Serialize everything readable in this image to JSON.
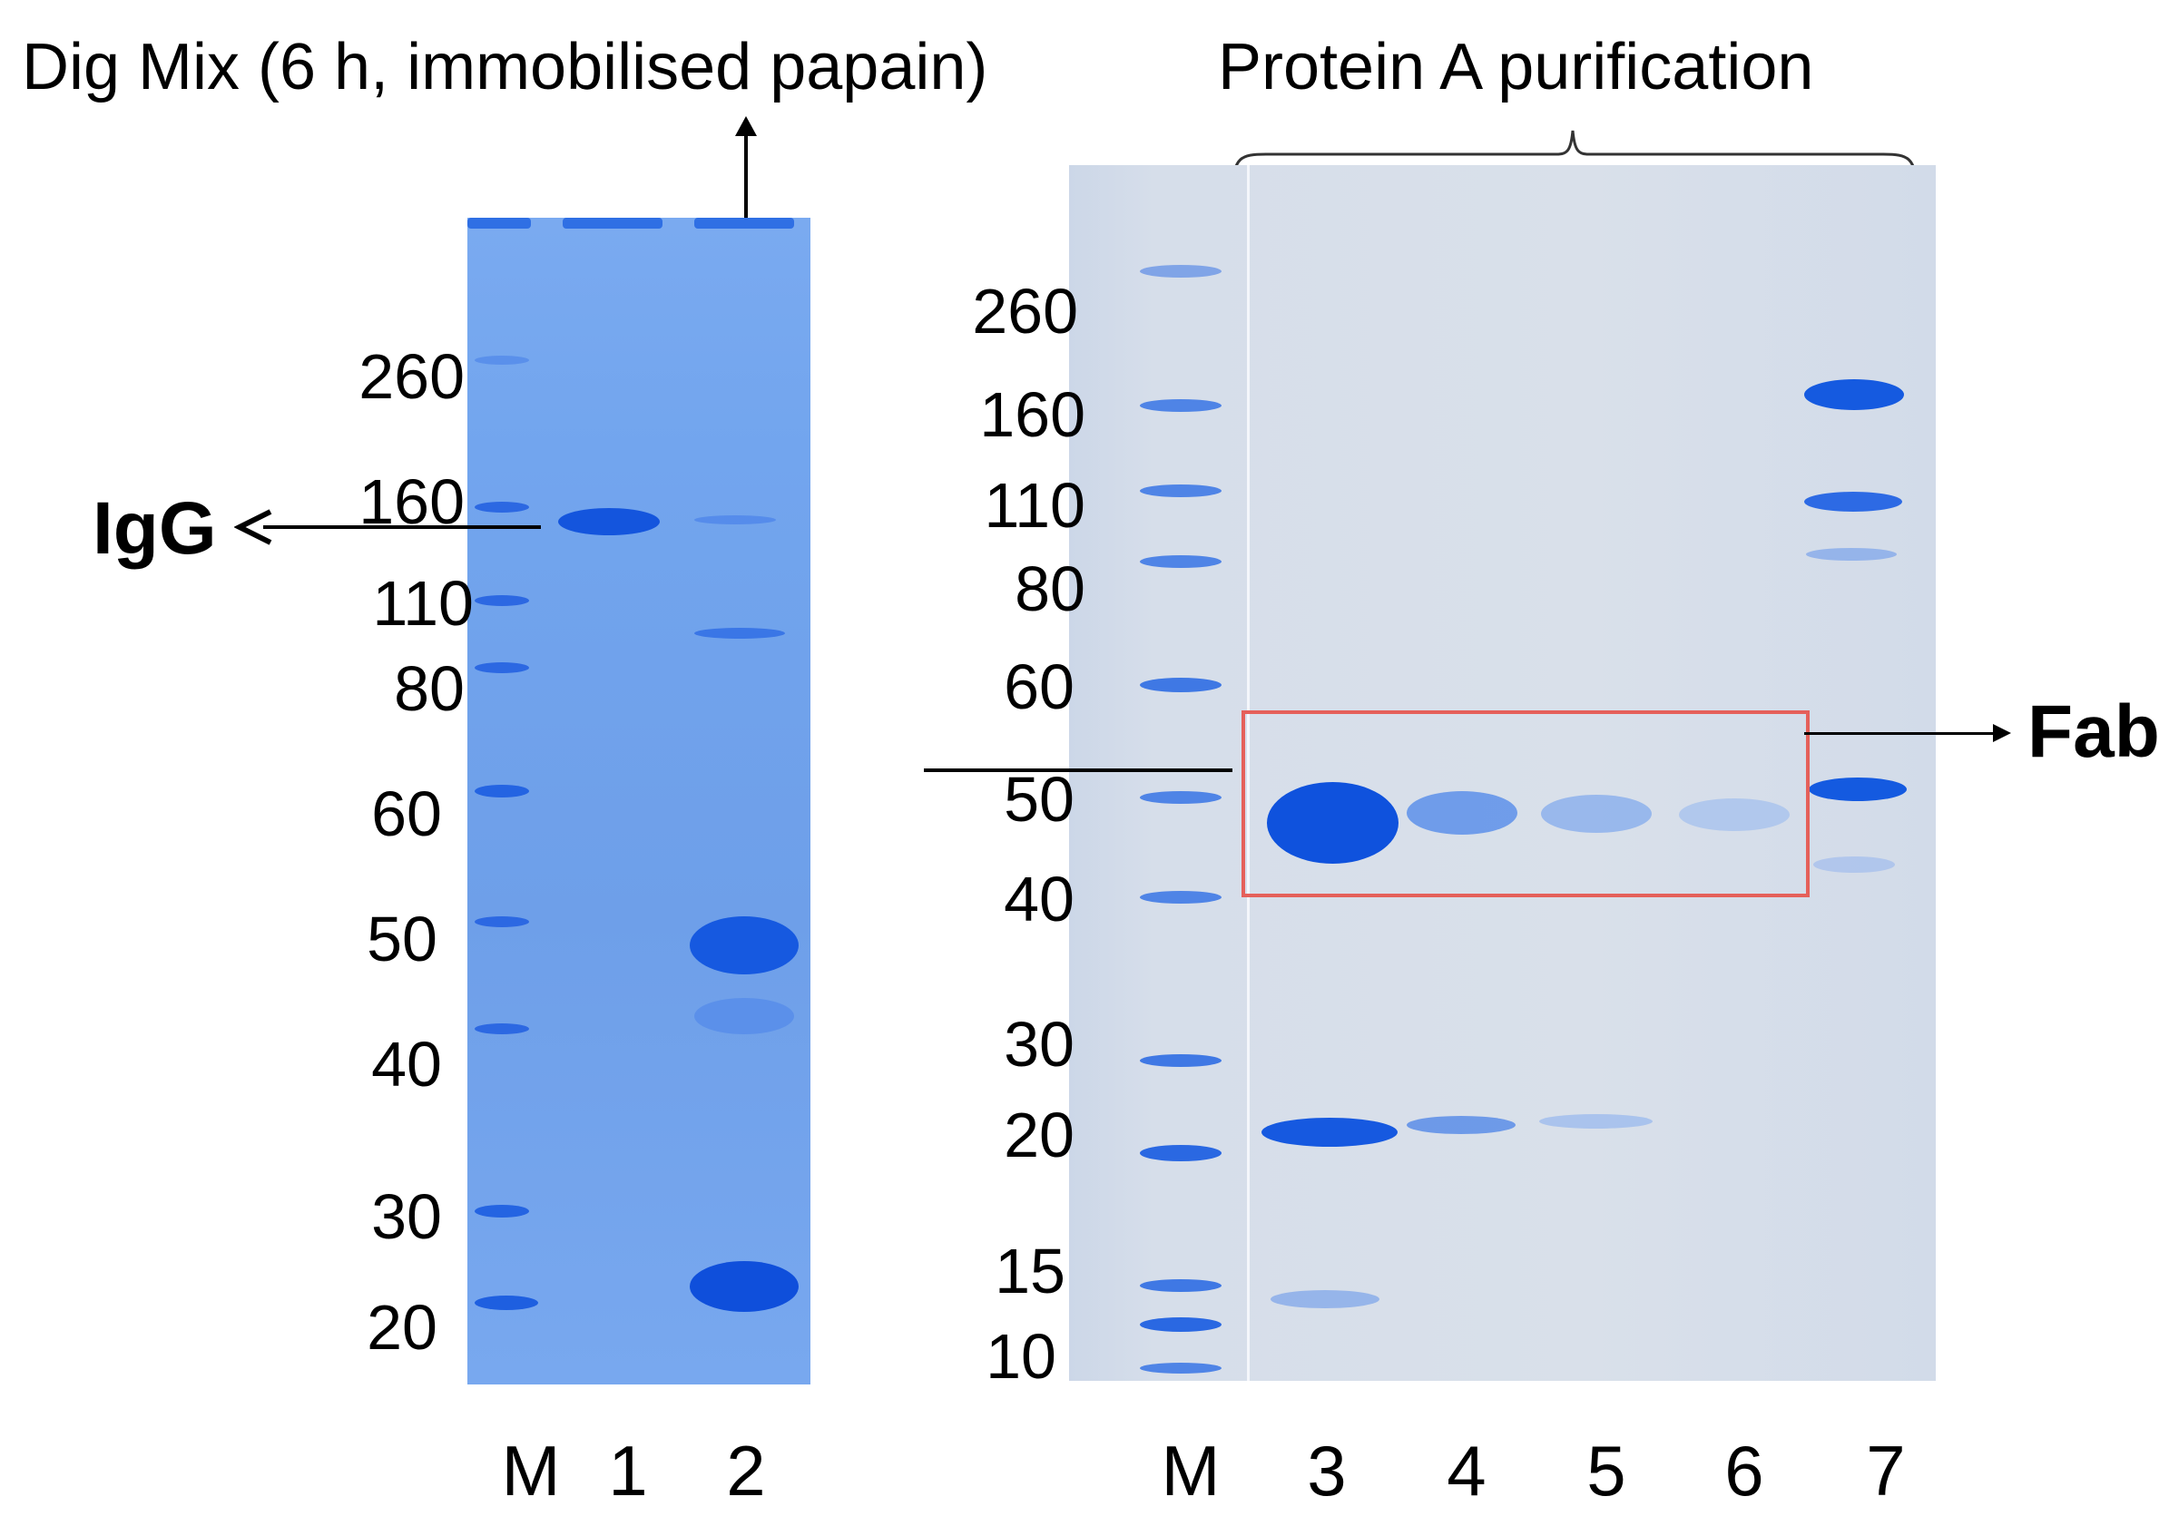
{
  "left_panel": {
    "title": "Dig Mix (6 h, immobilised papain)",
    "marker_labels": [
      "260",
      "160",
      "110",
      "80",
      "60",
      "50",
      "40",
      "30",
      "20"
    ],
    "lanes": [
      "M",
      "1",
      "2"
    ],
    "annotation": "IgG"
  },
  "right_panel": {
    "title": "Protein A purification",
    "marker_labels": [
      "260",
      "160",
      "110",
      "80",
      "60",
      "50",
      "40",
      "30",
      "20",
      "15",
      "10"
    ],
    "lanes": [
      "M",
      "3",
      "4",
      "5",
      "6",
      "7"
    ],
    "annotation": "Fab"
  },
  "colors": {
    "gel_left": "#74a6ee",
    "gel_right": "#d6deea",
    "band": "#1f5fe0",
    "highlight_box": "#e5605a"
  }
}
